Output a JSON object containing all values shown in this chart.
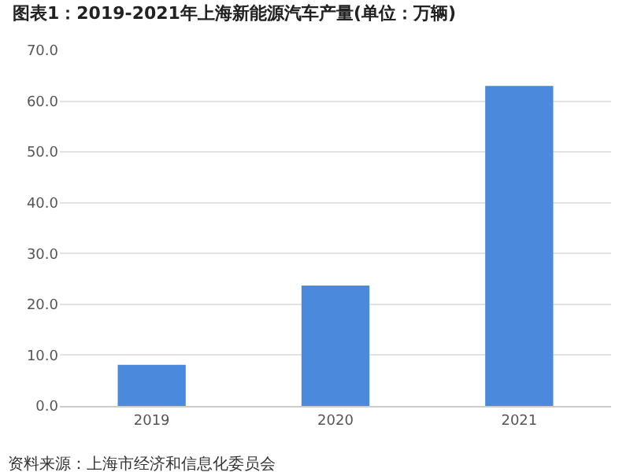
{
  "chart_data": {
    "type": "bar",
    "title": "图表1：2019-2021年上海新能源汽车产量(单位：万辆)",
    "categories": [
      "2019",
      "2020",
      "2021"
    ],
    "values": [
      8.1,
      23.7,
      63.0
    ],
    "color": "#4a89dc",
    "ylim": [
      0,
      70
    ],
    "yticks": [
      {
        "value": 0,
        "label": "0.0"
      },
      {
        "value": 10,
        "label": "10.0"
      },
      {
        "value": 20,
        "label": "20.0"
      },
      {
        "value": 30,
        "label": "30.0"
      },
      {
        "value": 40,
        "label": "40.0"
      },
      {
        "value": 50,
        "label": "50.0"
      },
      {
        "value": 60,
        "label": "60.0"
      },
      {
        "value": 70,
        "label": "70.0"
      }
    ],
    "grid": "y",
    "annotations": [
      "资料来源：上海市经济和信息化委员会"
    ]
  }
}
